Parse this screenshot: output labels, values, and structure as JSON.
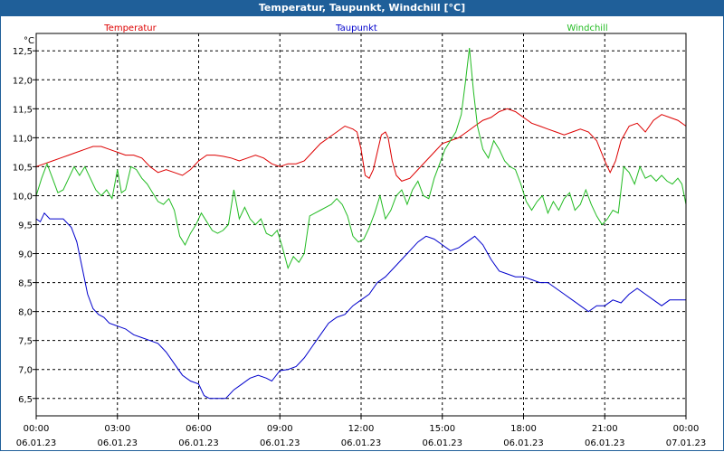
{
  "window": {
    "title": "Temperatur, Taupunkt, Windchill [°C]"
  },
  "colors": {
    "background": "#ffffff",
    "titlebar": "#1f5f99",
    "grid": "#000000"
  },
  "chart_data": {
    "type": "line",
    "title": "Temperatur, Taupunkt, Windchill [°C]",
    "ylabel": "°C",
    "xlabel": "",
    "ylim": [
      6.2,
      12.8
    ],
    "xlim": [
      0,
      24
    ],
    "grid": true,
    "yticks": [
      "6,5",
      "7,0",
      "7,5",
      "8,0",
      "8,5",
      "9,0",
      "9,5",
      "10,0",
      "10,5",
      "11,0",
      "11,5",
      "12,0",
      "12,5"
    ],
    "ytick_values": [
      6.5,
      7.0,
      7.5,
      8.0,
      8.5,
      9.0,
      9.5,
      10.0,
      10.5,
      11.0,
      11.5,
      12.0,
      12.5
    ],
    "xticks": [
      {
        "time": "00:00",
        "date": "06.01.23",
        "h": 0
      },
      {
        "time": "03:00",
        "date": "06.01.23",
        "h": 3
      },
      {
        "time": "06:00",
        "date": "06.01.23",
        "h": 6
      },
      {
        "time": "09:00",
        "date": "06.01.23",
        "h": 9
      },
      {
        "time": "12:00",
        "date": "06.01.23",
        "h": 12
      },
      {
        "time": "15:00",
        "date": "06.01.23",
        "h": 15
      },
      {
        "time": "18:00",
        "date": "06.01.23",
        "h": 18
      },
      {
        "time": "21:00",
        "date": "06.01.23",
        "h": 21
      },
      {
        "time": "00:00",
        "date": "07.01.23",
        "h": 24
      }
    ],
    "series": [
      {
        "name": "Temperatur",
        "color": "#dd0000",
        "legend_pos": "left",
        "points": [
          [
            0,
            10.5
          ],
          [
            0.3,
            10.55
          ],
          [
            0.6,
            10.6
          ],
          [
            0.9,
            10.65
          ],
          [
            1.2,
            10.7
          ],
          [
            1.5,
            10.75
          ],
          [
            1.8,
            10.8
          ],
          [
            2.1,
            10.85
          ],
          [
            2.4,
            10.85
          ],
          [
            2.7,
            10.8
          ],
          [
            3,
            10.75
          ],
          [
            3.3,
            10.7
          ],
          [
            3.6,
            10.7
          ],
          [
            3.9,
            10.65
          ],
          [
            4.2,
            10.5
          ],
          [
            4.5,
            10.4
          ],
          [
            4.8,
            10.45
          ],
          [
            5.1,
            10.4
          ],
          [
            5.4,
            10.35
          ],
          [
            5.7,
            10.45
          ],
          [
            6,
            10.6
          ],
          [
            6.3,
            10.7
          ],
          [
            6.6,
            10.7
          ],
          [
            6.9,
            10.68
          ],
          [
            7.2,
            10.65
          ],
          [
            7.5,
            10.6
          ],
          [
            7.8,
            10.65
          ],
          [
            8.1,
            10.7
          ],
          [
            8.4,
            10.65
          ],
          [
            8.7,
            10.55
          ],
          [
            9,
            10.5
          ],
          [
            9.3,
            10.55
          ],
          [
            9.6,
            10.55
          ],
          [
            9.9,
            10.6
          ],
          [
            10.2,
            10.75
          ],
          [
            10.5,
            10.9
          ],
          [
            10.8,
            11.0
          ],
          [
            11.1,
            11.1
          ],
          [
            11.4,
            11.2
          ],
          [
            11.7,
            11.15
          ],
          [
            11.85,
            11.1
          ],
          [
            12,
            10.8
          ],
          [
            12.15,
            10.35
          ],
          [
            12.3,
            10.3
          ],
          [
            12.45,
            10.45
          ],
          [
            12.6,
            10.75
          ],
          [
            12.75,
            11.05
          ],
          [
            12.9,
            11.1
          ],
          [
            13,
            11.0
          ],
          [
            13.15,
            10.6
          ],
          [
            13.3,
            10.35
          ],
          [
            13.5,
            10.25
          ],
          [
            13.8,
            10.3
          ],
          [
            14.1,
            10.45
          ],
          [
            14.4,
            10.6
          ],
          [
            14.7,
            10.75
          ],
          [
            15,
            10.9
          ],
          [
            15.3,
            10.95
          ],
          [
            15.6,
            11.0
          ],
          [
            15.9,
            11.1
          ],
          [
            16.2,
            11.2
          ],
          [
            16.5,
            11.3
          ],
          [
            16.8,
            11.35
          ],
          [
            17.1,
            11.45
          ],
          [
            17.4,
            11.5
          ],
          [
            17.7,
            11.45
          ],
          [
            18,
            11.35
          ],
          [
            18.3,
            11.25
          ],
          [
            18.6,
            11.2
          ],
          [
            18.9,
            11.15
          ],
          [
            19.2,
            11.1
          ],
          [
            19.5,
            11.05
          ],
          [
            19.8,
            11.1
          ],
          [
            20.1,
            11.15
          ],
          [
            20.4,
            11.1
          ],
          [
            20.7,
            10.95
          ],
          [
            21,
            10.6
          ],
          [
            21.2,
            10.4
          ],
          [
            21.4,
            10.6
          ],
          [
            21.6,
            10.95
          ],
          [
            21.9,
            11.2
          ],
          [
            22.2,
            11.25
          ],
          [
            22.5,
            11.1
          ],
          [
            22.8,
            11.3
          ],
          [
            23.1,
            11.4
          ],
          [
            23.4,
            11.35
          ],
          [
            23.7,
            11.3
          ],
          [
            24,
            11.2
          ]
        ]
      },
      {
        "name": "Taupunkt",
        "color": "#0000cc",
        "legend_pos": "center",
        "points": [
          [
            0,
            9.6
          ],
          [
            0.15,
            9.55
          ],
          [
            0.3,
            9.7
          ],
          [
            0.5,
            9.6
          ],
          [
            0.8,
            9.6
          ],
          [
            1.0,
            9.6
          ],
          [
            1.3,
            9.45
          ],
          [
            1.5,
            9.2
          ],
          [
            1.7,
            8.75
          ],
          [
            1.9,
            8.3
          ],
          [
            2.1,
            8.05
          ],
          [
            2.3,
            7.95
          ],
          [
            2.5,
            7.9
          ],
          [
            2.7,
            7.8
          ],
          [
            3.0,
            7.75
          ],
          [
            3.3,
            7.7
          ],
          [
            3.6,
            7.6
          ],
          [
            3.9,
            7.55
          ],
          [
            4.2,
            7.5
          ],
          [
            4.5,
            7.45
          ],
          [
            4.8,
            7.3
          ],
          [
            5.1,
            7.1
          ],
          [
            5.4,
            6.9
          ],
          [
            5.7,
            6.8
          ],
          [
            6.0,
            6.75
          ],
          [
            6.2,
            6.55
          ],
          [
            6.4,
            6.5
          ],
          [
            6.7,
            6.5
          ],
          [
            7.0,
            6.5
          ],
          [
            7.3,
            6.65
          ],
          [
            7.6,
            6.75
          ],
          [
            7.9,
            6.85
          ],
          [
            8.2,
            6.9
          ],
          [
            8.5,
            6.85
          ],
          [
            8.7,
            6.8
          ],
          [
            9.0,
            6.98
          ],
          [
            9.3,
            7.0
          ],
          [
            9.6,
            7.05
          ],
          [
            9.9,
            7.2
          ],
          [
            10.2,
            7.4
          ],
          [
            10.5,
            7.6
          ],
          [
            10.8,
            7.8
          ],
          [
            11.1,
            7.9
          ],
          [
            11.4,
            7.95
          ],
          [
            11.7,
            8.1
          ],
          [
            12.0,
            8.2
          ],
          [
            12.3,
            8.3
          ],
          [
            12.6,
            8.5
          ],
          [
            12.9,
            8.6
          ],
          [
            13.2,
            8.75
          ],
          [
            13.5,
            8.9
          ],
          [
            13.8,
            9.05
          ],
          [
            14.1,
            9.2
          ],
          [
            14.4,
            9.3
          ],
          [
            14.7,
            9.25
          ],
          [
            15.0,
            9.15
          ],
          [
            15.3,
            9.05
          ],
          [
            15.6,
            9.1
          ],
          [
            15.9,
            9.2
          ],
          [
            16.2,
            9.3
          ],
          [
            16.5,
            9.15
          ],
          [
            16.8,
            8.9
          ],
          [
            17.1,
            8.7
          ],
          [
            17.4,
            8.65
          ],
          [
            17.7,
            8.6
          ],
          [
            18.0,
            8.6
          ],
          [
            18.3,
            8.55
          ],
          [
            18.6,
            8.5
          ],
          [
            18.9,
            8.5
          ],
          [
            19.2,
            8.4
          ],
          [
            19.5,
            8.3
          ],
          [
            19.8,
            8.2
          ],
          [
            20.1,
            8.1
          ],
          [
            20.4,
            8.0
          ],
          [
            20.7,
            8.1
          ],
          [
            21.0,
            8.1
          ],
          [
            21.3,
            8.2
          ],
          [
            21.6,
            8.15
          ],
          [
            21.9,
            8.3
          ],
          [
            22.2,
            8.4
          ],
          [
            22.5,
            8.3
          ],
          [
            22.8,
            8.2
          ],
          [
            23.1,
            8.1
          ],
          [
            23.4,
            8.2
          ],
          [
            23.7,
            8.2
          ],
          [
            24,
            8.2
          ]
        ]
      },
      {
        "name": "Windchill",
        "color": "#22bb22",
        "legend_pos": "right",
        "points": [
          [
            0,
            10.0
          ],
          [
            0.2,
            10.3
          ],
          [
            0.4,
            10.55
          ],
          [
            0.6,
            10.3
          ],
          [
            0.8,
            10.05
          ],
          [
            1.0,
            10.1
          ],
          [
            1.2,
            10.3
          ],
          [
            1.4,
            10.5
          ],
          [
            1.6,
            10.35
          ],
          [
            1.8,
            10.5
          ],
          [
            2.0,
            10.3
          ],
          [
            2.2,
            10.1
          ],
          [
            2.4,
            10.0
          ],
          [
            2.6,
            10.1
          ],
          [
            2.8,
            9.95
          ],
          [
            3.0,
            10.45
          ],
          [
            3.15,
            10.05
          ],
          [
            3.3,
            10.1
          ],
          [
            3.5,
            10.5
          ],
          [
            3.7,
            10.45
          ],
          [
            3.9,
            10.3
          ],
          [
            4.1,
            10.2
          ],
          [
            4.3,
            10.05
          ],
          [
            4.5,
            9.9
          ],
          [
            4.7,
            9.85
          ],
          [
            4.9,
            9.95
          ],
          [
            5.1,
            9.75
          ],
          [
            5.3,
            9.3
          ],
          [
            5.5,
            9.15
          ],
          [
            5.7,
            9.35
          ],
          [
            5.9,
            9.5
          ],
          [
            6.1,
            9.7
          ],
          [
            6.3,
            9.55
          ],
          [
            6.5,
            9.4
          ],
          [
            6.7,
            9.35
          ],
          [
            6.9,
            9.4
          ],
          [
            7.1,
            9.5
          ],
          [
            7.3,
            10.1
          ],
          [
            7.5,
            9.6
          ],
          [
            7.7,
            9.8
          ],
          [
            7.9,
            9.6
          ],
          [
            8.1,
            9.5
          ],
          [
            8.3,
            9.6
          ],
          [
            8.5,
            9.35
          ],
          [
            8.7,
            9.3
          ],
          [
            8.9,
            9.4
          ],
          [
            9.1,
            9.1
          ],
          [
            9.3,
            8.75
          ],
          [
            9.5,
            8.95
          ],
          [
            9.7,
            8.85
          ],
          [
            9.9,
            9.0
          ],
          [
            10.1,
            9.65
          ],
          [
            10.3,
            9.7
          ],
          [
            10.5,
            9.75
          ],
          [
            10.7,
            9.8
          ],
          [
            10.9,
            9.85
          ],
          [
            11.1,
            9.95
          ],
          [
            11.3,
            9.85
          ],
          [
            11.5,
            9.65
          ],
          [
            11.7,
            9.3
          ],
          [
            11.9,
            9.2
          ],
          [
            12.1,
            9.25
          ],
          [
            12.3,
            9.45
          ],
          [
            12.5,
            9.7
          ],
          [
            12.7,
            10.0
          ],
          [
            12.9,
            9.6
          ],
          [
            13.1,
            9.75
          ],
          [
            13.3,
            10.0
          ],
          [
            13.5,
            10.1
          ],
          [
            13.7,
            9.85
          ],
          [
            13.9,
            10.1
          ],
          [
            14.1,
            10.25
          ],
          [
            14.3,
            10.0
          ],
          [
            14.5,
            9.95
          ],
          [
            14.7,
            10.3
          ],
          [
            14.9,
            10.55
          ],
          [
            15.1,
            10.8
          ],
          [
            15.3,
            10.95
          ],
          [
            15.5,
            11.1
          ],
          [
            15.7,
            11.4
          ],
          [
            15.85,
            11.95
          ],
          [
            16.0,
            12.55
          ],
          [
            16.15,
            11.8
          ],
          [
            16.3,
            11.2
          ],
          [
            16.5,
            10.8
          ],
          [
            16.7,
            10.65
          ],
          [
            16.9,
            10.95
          ],
          [
            17.1,
            10.8
          ],
          [
            17.3,
            10.6
          ],
          [
            17.5,
            10.5
          ],
          [
            17.7,
            10.45
          ],
          [
            17.9,
            10.2
          ],
          [
            18.1,
            9.9
          ],
          [
            18.3,
            9.75
          ],
          [
            18.5,
            9.9
          ],
          [
            18.7,
            10.0
          ],
          [
            18.9,
            9.7
          ],
          [
            19.1,
            9.9
          ],
          [
            19.3,
            9.75
          ],
          [
            19.5,
            9.95
          ],
          [
            19.7,
            10.05
          ],
          [
            19.9,
            9.75
          ],
          [
            20.1,
            9.85
          ],
          [
            20.3,
            10.1
          ],
          [
            20.5,
            9.85
          ],
          [
            20.7,
            9.65
          ],
          [
            20.9,
            9.5
          ],
          [
            21.1,
            9.6
          ],
          [
            21.3,
            9.75
          ],
          [
            21.5,
            9.7
          ],
          [
            21.7,
            10.5
          ],
          [
            21.9,
            10.4
          ],
          [
            22.1,
            10.2
          ],
          [
            22.3,
            10.5
          ],
          [
            22.5,
            10.3
          ],
          [
            22.7,
            10.35
          ],
          [
            22.9,
            10.25
          ],
          [
            23.1,
            10.35
          ],
          [
            23.3,
            10.25
          ],
          [
            23.5,
            10.2
          ],
          [
            23.7,
            10.3
          ],
          [
            23.85,
            10.2
          ],
          [
            24,
            9.85
          ]
        ]
      }
    ]
  }
}
